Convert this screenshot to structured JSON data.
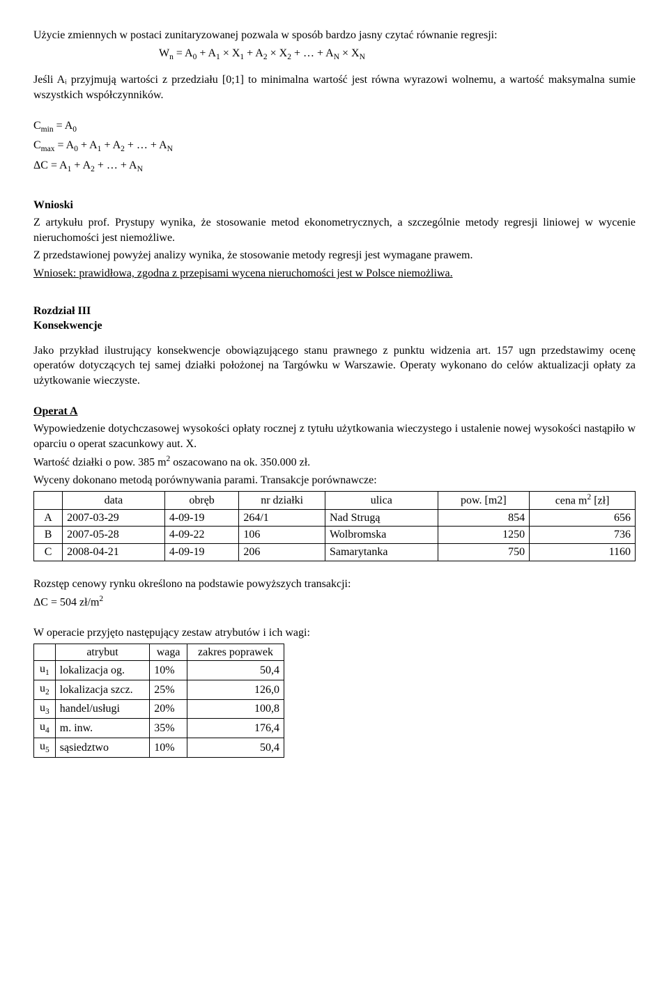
{
  "intro": {
    "p1": "Użycie zmiennych w postaci zunitaryzowanej pozwala w sposób bardzo jasny czytać równanie regresji:",
    "p2": "Jeśli Aᵢ przyjmują wartości z przedziału [0;1] to minimalna wartość jest równa wyrazowi wolnemu, a wartość maksymalna sumie wszystkich współczynników."
  },
  "equations": {
    "wn_html": "W<sub>n</sub> = A<sub>0</sub> + A<sub>1</sub> × X<sub>1</sub> + A<sub>2</sub> × X<sub>2</sub> + … + A<sub>N</sub> × X<sub>N</sub>",
    "cmin_html": "C<sub>min</sub> = A<sub>0</sub>",
    "cmax_html": "C<sub>max</sub> = A<sub>0</sub> +  A<sub>1</sub> + A<sub>2</sub> + … + A<sub>N</sub>",
    "dc_html": "ΔC = A<sub>1</sub> + A<sub>2</sub> + … + A<sub>N</sub>"
  },
  "wnioski": {
    "heading": "Wnioski",
    "p1": "Z artykułu prof. Prystupy wynika, że stosowanie metod ekonometrycznych, a szczególnie metody regresji liniowej w wycenie nieruchomości jest niemożliwe.",
    "p2": "Z przedstawionej powyżej analizy wynika, że stosowanie metody regresji jest wymagane prawem.",
    "p3": "Wniosek: prawidłowa, zgodna z przepisami wycena nieruchomości jest w Polsce niemożliwa."
  },
  "rozdzial": {
    "title": "Rozdział III",
    "subtitle": "Konsekwencje",
    "p1": "Jako przykład ilustrujący konsekwencje obowiązującego stanu prawnego z punktu widzenia art. 157 ugn przedstawimy ocenę operatów dotyczących tej samej działki położonej na Targówku w Warszawie. Operaty wykonano do celów aktualizacji opłaty za użytkowanie wieczyste."
  },
  "operatA": {
    "heading": "Operat A",
    "p1": "Wypowiedzenie dotychczasowej wysokości opłaty rocznej z tytułu użytkowania wieczystego i ustalenie nowej wysokości nastąpiło w oparciu o operat szacunkowy aut. X.",
    "p2_html": "Wartość działki o pow. 385 m<sup>2</sup> oszacowano na ok. 350.000 zł.",
    "p3": "Wyceny dokonano metodą porównywania parami. Transakcje porównawcze:"
  },
  "trans_table": {
    "columns": [
      "",
      "data",
      "obręb",
      "nr działki",
      "ulica",
      "pow. [m2]",
      "cena m² [zł]"
    ],
    "col_last_html": "cena m<sup>2</sup> [zł]",
    "rows": [
      [
        "A",
        "2007-03-29",
        "4-09-19",
        "264/1",
        "Nad Strugą",
        "854",
        "656"
      ],
      [
        "B",
        "2007-05-28",
        "4-09-22",
        "106",
        "Wolbromska",
        "1250",
        "736"
      ],
      [
        "C",
        "2008-04-21",
        "4-09-19",
        "206",
        "Samarytanka",
        "750",
        "1160"
      ]
    ]
  },
  "rozstep": {
    "p1": "Rozstęp cenowy rynku określono na podstawie powyższych transakcji:",
    "p2_html": "ΔC = 504 zł/m<sup>2</sup>"
  },
  "attr_intro": "W operacie przyjęto następujący zestaw atrybutów i ich wagi:",
  "attr_table": {
    "columns": [
      "",
      "atrybut",
      "waga",
      "zakres poprawek"
    ],
    "rows": [
      {
        "id_html": "u<sub>1</sub>",
        "attr": "lokalizacja og.",
        "waga": "10%",
        "zakres": "50,4"
      },
      {
        "id_html": "u<sub>2</sub>",
        "attr": "lokalizacja szcz.",
        "waga": "25%",
        "zakres": "126,0"
      },
      {
        "id_html": "u<sub>3</sub>",
        "attr": "handel/usługi",
        "waga": "20%",
        "zakres": "100,8"
      },
      {
        "id_html": "u<sub>4</sub>",
        "attr": "m. inw.",
        "waga": "35%",
        "zakres": "176,4"
      },
      {
        "id_html": "u<sub>5</sub>",
        "attr": "sąsiedztwo",
        "waga": "10%",
        "zakres": "50,4"
      }
    ]
  }
}
